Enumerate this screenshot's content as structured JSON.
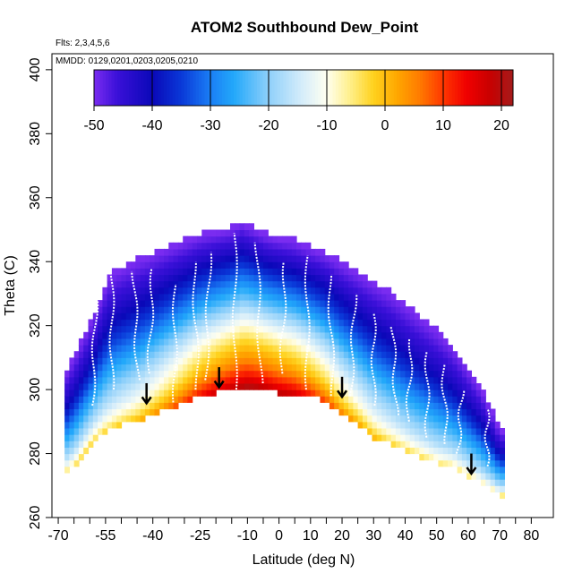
{
  "chart_data": {
    "type": "heatmap",
    "title": "ATOM2 Southbound Dew_Point",
    "annotations": [
      "Flts: 2,3,4,5,6",
      "MMDD: 0129,0201,0203,0205,0210"
    ],
    "xlabel": "Latitude (deg N)",
    "ylabel": "Theta (C)",
    "xlim": [
      -72,
      87
    ],
    "ylim": [
      260,
      405
    ],
    "x_tick_labels": [
      -70,
      -55,
      -40,
      -25,
      -10,
      0,
      10,
      20,
      30,
      40,
      50,
      60,
      70,
      80
    ],
    "x_ticks_minor": [
      -65,
      -60,
      -50,
      -45,
      -35,
      -30,
      -20,
      -15,
      -5,
      5,
      15,
      25,
      35,
      45,
      55,
      65,
      75
    ],
    "y_ticks": [
      260,
      280,
      300,
      320,
      340,
      360,
      380,
      400
    ],
    "colorbar": {
      "range": [
        -50,
        22
      ],
      "ticks": [
        -50,
        -40,
        -30,
        -20,
        -10,
        0,
        10,
        20
      ],
      "colors": [
        {
          "v": -50,
          "c": "#7a2cf0"
        },
        {
          "v": -46,
          "c": "#3a10d8"
        },
        {
          "v": -40,
          "c": "#0a08b8"
        },
        {
          "v": -35,
          "c": "#0a38d8"
        },
        {
          "v": -30,
          "c": "#1a7ef5"
        },
        {
          "v": -26,
          "c": "#22a8fa"
        },
        {
          "v": -20,
          "c": "#8fd0fa"
        },
        {
          "v": -14,
          "c": "#d8eefa"
        },
        {
          "v": -10,
          "c": "#fffff0"
        },
        {
          "v": -6,
          "c": "#ffef8a"
        },
        {
          "v": -2,
          "c": "#ffd21e"
        },
        {
          "v": 2,
          "c": "#ffa800"
        },
        {
          "v": 6,
          "c": "#ff7a00"
        },
        {
          "v": 10,
          "c": "#ff3600"
        },
        {
          "v": 14,
          "c": "#f00000"
        },
        {
          "v": 18,
          "c": "#c80000"
        },
        {
          "v": 22,
          "c": "#a51b1b"
        }
      ]
    },
    "domain_top": [
      [
        -68,
        304
      ],
      [
        -65,
        310
      ],
      [
        -62,
        316
      ],
      [
        -59,
        322
      ],
      [
        -56,
        330
      ],
      [
        -53,
        336
      ],
      [
        -49,
        338
      ],
      [
        -45,
        340
      ],
      [
        -40,
        342
      ],
      [
        -35,
        344
      ],
      [
        -30,
        346
      ],
      [
        -25,
        348
      ],
      [
        -20,
        349
      ],
      [
        -15,
        350
      ],
      [
        -12,
        352
      ],
      [
        -8,
        350
      ],
      [
        -4,
        348
      ],
      [
        0,
        347
      ],
      [
        5,
        346
      ],
      [
        10,
        344
      ],
      [
        15,
        342
      ],
      [
        20,
        339
      ],
      [
        25,
        336
      ],
      [
        30,
        333
      ],
      [
        35,
        330
      ],
      [
        40,
        326
      ],
      [
        45,
        322
      ],
      [
        50,
        318
      ],
      [
        55,
        313
      ],
      [
        60,
        306
      ],
      [
        64,
        300
      ],
      [
        67,
        294
      ],
      [
        70,
        287
      ]
    ],
    "domain_bottom": [
      [
        -68,
        274
      ],
      [
        -65,
        276
      ],
      [
        -62,
        280
      ],
      [
        -59,
        284
      ],
      [
        -55,
        287
      ],
      [
        -50,
        289
      ],
      [
        -45,
        290
      ],
      [
        -40,
        292
      ],
      [
        -35,
        294
      ],
      [
        -30,
        296
      ],
      [
        -25,
        298
      ],
      [
        -20,
        299
      ],
      [
        -15,
        300
      ],
      [
        -10,
        301
      ],
      [
        -5,
        300
      ],
      [
        0,
        299
      ],
      [
        5,
        299
      ],
      [
        10,
        298
      ],
      [
        15,
        296
      ],
      [
        20,
        292
      ],
      [
        25,
        289
      ],
      [
        30,
        285
      ],
      [
        35,
        283
      ],
      [
        40,
        281
      ],
      [
        45,
        279
      ],
      [
        50,
        277
      ],
      [
        55,
        276
      ],
      [
        60,
        273
      ],
      [
        65,
        270
      ],
      [
        70,
        267
      ]
    ],
    "dewpoint_model": {
      "description": "dew point (C) as function of height fraction f (0=bottom,1=top) and latitude",
      "fraction_breaks": [
        0.0,
        0.06,
        0.15,
        0.28,
        0.42,
        0.55,
        0.7,
        0.85,
        1.0
      ],
      "profile_center_lat0": [
        20,
        14,
        6,
        -2,
        -12,
        -22,
        -32,
        -42,
        -50
      ],
      "profile_edges": [
        -6,
        -12,
        -18,
        -24,
        -30,
        -36,
        -42,
        -46,
        -50
      ],
      "center_lat": -8,
      "center_width": 32
    },
    "arrows": [
      {
        "lat": -42,
        "theta": 296,
        "direction": "down"
      },
      {
        "lat": -19,
        "theta": 301,
        "direction": "down"
      },
      {
        "lat": 20,
        "theta": 298,
        "direction": "down"
      },
      {
        "lat": 61,
        "theta": 274,
        "direction": "down"
      }
    ],
    "flight_profiles": [
      {
        "lat": -58,
        "theta_min": 295,
        "theta_max": 330
      },
      {
        "lat": -53,
        "theta_min": 300,
        "theta_max": 336
      },
      {
        "lat": -46,
        "theta_min": 303,
        "theta_max": 337
      },
      {
        "lat": -40,
        "theta_min": 305,
        "theta_max": 338
      },
      {
        "lat": -33,
        "theta_min": 296,
        "theta_max": 333
      },
      {
        "lat": -27,
        "theta_min": 300,
        "theta_max": 340
      },
      {
        "lat": -22,
        "theta_min": 303,
        "theta_max": 343
      },
      {
        "lat": -14,
        "theta_min": 300,
        "theta_max": 349
      },
      {
        "lat": -7,
        "theta_min": 302,
        "theta_max": 346
      },
      {
        "lat": 2,
        "theta_min": 305,
        "theta_max": 340
      },
      {
        "lat": 9,
        "theta_min": 300,
        "theta_max": 342
      },
      {
        "lat": 16,
        "theta_min": 298,
        "theta_max": 336
      },
      {
        "lat": 24,
        "theta_min": 298,
        "theta_max": 330
      },
      {
        "lat": 30,
        "theta_min": 295,
        "theta_max": 324
      },
      {
        "lat": 36,
        "theta_min": 292,
        "theta_max": 320
      },
      {
        "lat": 42,
        "theta_min": 290,
        "theta_max": 316
      },
      {
        "lat": 47,
        "theta_min": 285,
        "theta_max": 312
      },
      {
        "lat": 52,
        "theta_min": 283,
        "theta_max": 308
      },
      {
        "lat": 58,
        "theta_min": 280,
        "theta_max": 300
      },
      {
        "lat": 66,
        "theta_min": 276,
        "theta_max": 294
      }
    ]
  }
}
